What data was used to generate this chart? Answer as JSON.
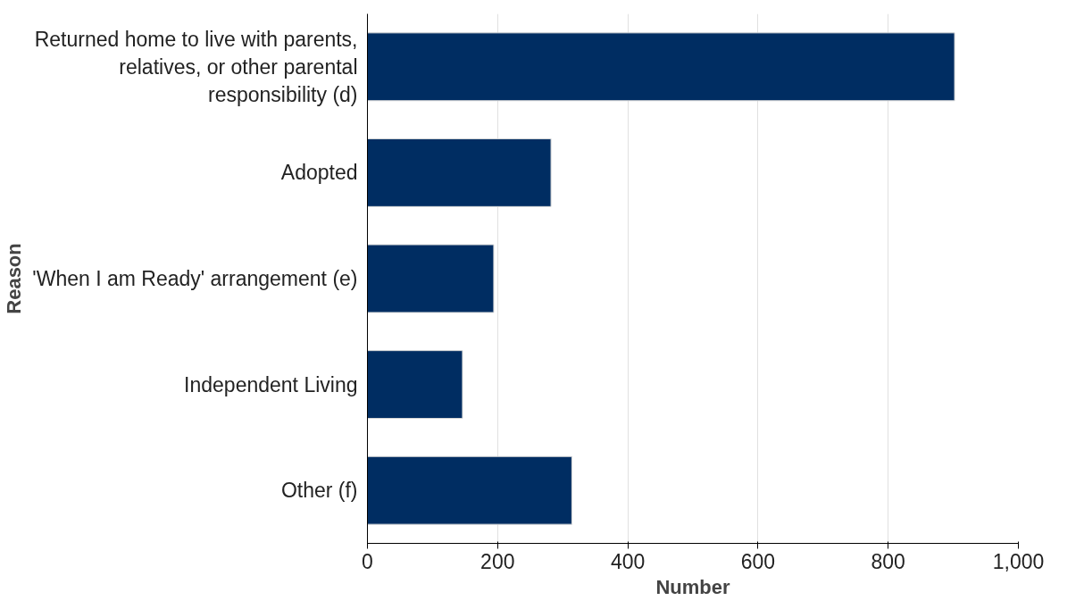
{
  "chart_data": {
    "type": "bar",
    "orientation": "horizontal",
    "xlabel": "Number",
    "ylabel": "Reason",
    "categories": [
      "Returned home to live with parents, relatives, or other parental responsibility (d)",
      "Adopted",
      "'When I am Ready' arrangement (e)",
      "Independent Living",
      "Other (f)"
    ],
    "values": [
      902,
      282,
      194,
      146,
      314
    ],
    "color": "#002d62",
    "xlim": [
      0,
      1000
    ],
    "xticks": [
      0,
      200,
      400,
      600,
      800,
      {
        "value": 1000,
        "label": "1,000"
      }
    ],
    "grid": "x"
  }
}
